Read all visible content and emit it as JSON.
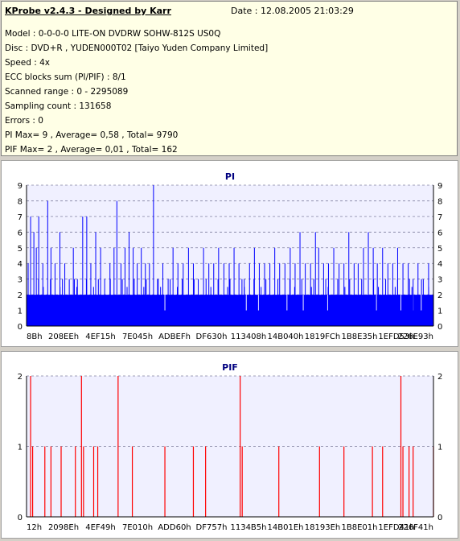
{
  "app": {
    "title": "KProbe v2.4.3 - Designed by Karr",
    "date": "Date : 12.08.2005 21:03:29"
  },
  "info": [
    "Model : 0-0-0-0 LITE-ON DVDRW SOHW-812S  US0Q",
    "Disc : DVD+R , YUDEN000T02 [Taiyo Yuden Company Limited]",
    "Speed : 4x",
    "ECC blocks sum (PI/PIF) : 8/1",
    "Scanned range : 0 - 2295089",
    "Sampling count : 131658",
    "Errors : 0",
    "PI Max= 9 , Average= 0,58 , Total= 9790",
    "PIF Max= 2 , Average= 0,01 , Total= 162"
  ],
  "colors": {
    "pi": "#0000ff",
    "pif": "#ff0000",
    "title": "#000080",
    "bg": "#f0f0ff"
  },
  "chart_data": [
    {
      "type": "bar",
      "title": "PI",
      "ylim": [
        0,
        9
      ],
      "yticks": [
        0,
        1,
        2,
        3,
        4,
        5,
        6,
        7,
        8,
        9
      ],
      "xticks": [
        "8Bh",
        "208EEh",
        "4EF15h",
        "7E045h",
        "ADBEFh",
        "DF630h",
        "113408h",
        "14B040h",
        "1819FCh",
        "1B8E35h",
        "1EFD53h",
        "226E93h"
      ],
      "grid": true,
      "base_level": 2,
      "spikes": [
        [
          0.004,
          4
        ],
        [
          0.01,
          7
        ],
        [
          0.018,
          6
        ],
        [
          0.024,
          5
        ],
        [
          0.03,
          7
        ],
        [
          0.04,
          4
        ],
        [
          0.052,
          8
        ],
        [
          0.06,
          5
        ],
        [
          0.07,
          4
        ],
        [
          0.082,
          6
        ],
        [
          0.094,
          4
        ],
        [
          0.105,
          3
        ],
        [
          0.115,
          5
        ],
        [
          0.125,
          3
        ],
        [
          0.138,
          7
        ],
        [
          0.148,
          7
        ],
        [
          0.158,
          4
        ],
        [
          0.17,
          6
        ],
        [
          0.182,
          5
        ],
        [
          0.192,
          3
        ],
        [
          0.205,
          4
        ],
        [
          0.215,
          5
        ],
        [
          0.222,
          8
        ],
        [
          0.232,
          4
        ],
        [
          0.242,
          5
        ],
        [
          0.252,
          6
        ],
        [
          0.262,
          5
        ],
        [
          0.272,
          4
        ],
        [
          0.282,
          5
        ],
        [
          0.292,
          4
        ],
        [
          0.302,
          4
        ],
        [
          0.312,
          9
        ],
        [
          0.322,
          3
        ],
        [
          0.335,
          4
        ],
        [
          0.348,
          3
        ],
        [
          0.36,
          5
        ],
        [
          0.372,
          4
        ],
        [
          0.385,
          4
        ],
        [
          0.398,
          5
        ],
        [
          0.41,
          4
        ],
        [
          0.422,
          3
        ],
        [
          0.435,
          5
        ],
        [
          0.448,
          4
        ],
        [
          0.46,
          4
        ],
        [
          0.472,
          5
        ],
        [
          0.485,
          4
        ],
        [
          0.498,
          4
        ],
        [
          0.51,
          5
        ],
        [
          0.522,
          4
        ],
        [
          0.535,
          3
        ],
        [
          0.548,
          4
        ],
        [
          0.56,
          5
        ],
        [
          0.572,
          4
        ],
        [
          0.585,
          4
        ],
        [
          0.598,
          4
        ],
        [
          0.61,
          5
        ],
        [
          0.622,
          4
        ],
        [
          0.635,
          4
        ],
        [
          0.648,
          5
        ],
        [
          0.66,
          4
        ],
        [
          0.672,
          6
        ],
        [
          0.685,
          4
        ],
        [
          0.698,
          4
        ],
        [
          0.71,
          6
        ],
        [
          0.718,
          5
        ],
        [
          0.73,
          4
        ],
        [
          0.742,
          4
        ],
        [
          0.755,
          5
        ],
        [
          0.768,
          4
        ],
        [
          0.78,
          4
        ],
        [
          0.792,
          6
        ],
        [
          0.805,
          4
        ],
        [
          0.815,
          4
        ],
        [
          0.828,
          5
        ],
        [
          0.84,
          6
        ],
        [
          0.852,
          5
        ],
        [
          0.862,
          4
        ],
        [
          0.875,
          5
        ],
        [
          0.888,
          4
        ],
        [
          0.9,
          4
        ],
        [
          0.912,
          5
        ],
        [
          0.925,
          4
        ],
        [
          0.938,
          4
        ],
        [
          0.95,
          3
        ],
        [
          0.962,
          4
        ],
        [
          0.975,
          3
        ],
        [
          0.988,
          4
        ]
      ],
      "dips": [
        0.34,
        0.54,
        0.57,
        0.64,
        0.68,
        0.74,
        0.86,
        0.92,
        0.95,
        0.97
      ]
    },
    {
      "type": "bar",
      "title": "PIF",
      "ylim": [
        0,
        2
      ],
      "yticks": [
        0,
        1,
        2
      ],
      "xticks": [
        "12h",
        "2098Eh",
        "4EF49h",
        "7E010h",
        "ADD60h",
        "DF757h",
        "1134B5h",
        "14B01Eh",
        "18193Eh",
        "1B8E01h",
        "1EFD41h",
        "226F41h"
      ],
      "grid": true,
      "spikes": [
        [
          0.01,
          2
        ],
        [
          0.015,
          1
        ],
        [
          0.045,
          1
        ],
        [
          0.06,
          1
        ],
        [
          0.085,
          1
        ],
        [
          0.12,
          1
        ],
        [
          0.135,
          2
        ],
        [
          0.14,
          1
        ],
        [
          0.165,
          1
        ],
        [
          0.175,
          1
        ],
        [
          0.225,
          2
        ],
        [
          0.26,
          1
        ],
        [
          0.34,
          1
        ],
        [
          0.41,
          1
        ],
        [
          0.44,
          1
        ],
        [
          0.525,
          2
        ],
        [
          0.53,
          1
        ],
        [
          0.62,
          1
        ],
        [
          0.72,
          1
        ],
        [
          0.78,
          1
        ],
        [
          0.85,
          1
        ],
        [
          0.875,
          1
        ],
        [
          0.92,
          2
        ],
        [
          0.925,
          1
        ],
        [
          0.94,
          1
        ],
        [
          0.95,
          1
        ],
        [
          1.0,
          1
        ]
      ]
    }
  ]
}
